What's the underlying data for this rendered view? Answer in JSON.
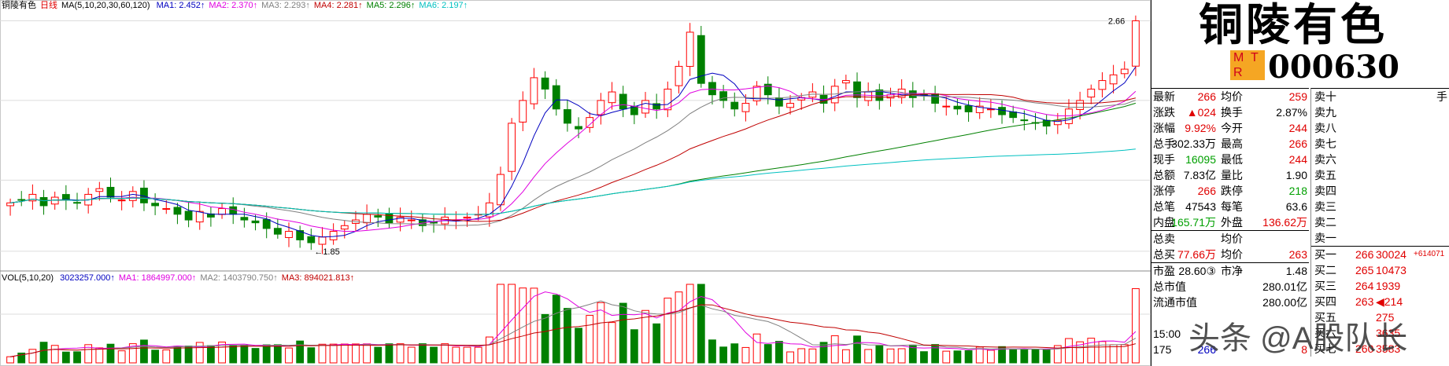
{
  "chart": {
    "stock_name": "铜陵有色",
    "period": "日线",
    "ma_spec": "MA(5,10,20,30,60,120)",
    "ma_labels": [
      {
        "text": "MA1: 2.452↑",
        "color": "#0000c0"
      },
      {
        "text": "MA2: 2.370↑",
        "color": "#e000e0"
      },
      {
        "text": "MA3: 2.293↑",
        "color": "#808080"
      },
      {
        "text": "MA4: 2.281↑",
        "color": "#c00000"
      },
      {
        "text": "MA5: 2.296↑",
        "color": "#008000"
      },
      {
        "text": "MA6: 2.197↑",
        "color": "#00c0c0"
      }
    ],
    "high_label": "2.66",
    "low_label": "←1.85",
    "vol_spec": "VOL(5,10,20)",
    "vol_labels": [
      {
        "text": "3023257.000↑",
        "color": "#0000c0"
      },
      {
        "text": "MA1: 1864997.000↑",
        "color": "#e000e0"
      },
      {
        "text": "MA2: 1403790.750↑",
        "color": "#808080"
      },
      {
        "text": "MA3: 894021.813↑",
        "color": "#c00000"
      }
    ]
  },
  "chart_data": {
    "type": "candlestick",
    "y_range": [
      1.8,
      2.7
    ],
    "closes": [
      2.02,
      2.03,
      2.05,
      2.01,
      2.04,
      2.03,
      2.02,
      2.05,
      2.07,
      2.04,
      2.03,
      2.06,
      2.02,
      2.01,
      2.0,
      1.98,
      1.96,
      1.99,
      1.97,
      2.0,
      1.98,
      1.96,
      1.95,
      1.93,
      1.91,
      1.92,
      1.89,
      1.88,
      1.9,
      1.92,
      1.94,
      1.96,
      1.98,
      1.97,
      1.95,
      1.97,
      1.96,
      1.94,
      1.95,
      1.97,
      1.96,
      1.97,
      1.98,
      2.02,
      2.12,
      2.3,
      2.38,
      2.46,
      2.42,
      2.35,
      2.3,
      2.28,
      2.32,
      2.38,
      2.41,
      2.35,
      2.33,
      2.38,
      2.35,
      2.42,
      2.5,
      2.62,
      2.44,
      2.4,
      2.38,
      2.35,
      2.37,
      2.43,
      2.4,
      2.36,
      2.37,
      2.39,
      2.41,
      2.37,
      2.43,
      2.45,
      2.39,
      2.41,
      2.38,
      2.4,
      2.42,
      2.39,
      2.4,
      2.37,
      2.36,
      2.35,
      2.34,
      2.36,
      2.35,
      2.33,
      2.32,
      2.31,
      2.3,
      2.29,
      2.31,
      2.35,
      2.38,
      2.42,
      2.45,
      2.47,
      2.49,
      2.66
    ],
    "volume_scale_max": 3200000
  },
  "panel": {
    "title": "铜陵有色",
    "mtr": [
      "M",
      "T",
      "R"
    ],
    "code": "000630",
    "quote_rows": [
      {
        "l1": "最新",
        "v1": "266",
        "c1": "red",
        "l2": "均价",
        "v2": "259",
        "c2": "red"
      },
      {
        "l1": "涨跌",
        "v1": "▲024",
        "c1": "red",
        "l2": "换手",
        "v2": "2.87%",
        "c2": "blk"
      },
      {
        "l1": "涨幅",
        "v1": "9.92%",
        "c1": "red",
        "l2": "今开",
        "v2": "244",
        "c2": "red"
      },
      {
        "l1": "总手",
        "v1": "302.33万",
        "c1": "blk",
        "l2": "最高",
        "v2": "266",
        "c2": "red"
      },
      {
        "l1": "现手",
        "v1": "16095",
        "c1": "grn",
        "l2": "最低",
        "v2": "244",
        "c2": "red"
      },
      {
        "l1": "总额",
        "v1": "7.83亿",
        "c1": "blk",
        "l2": "量比",
        "v2": "1.90",
        "c2": "blk"
      },
      {
        "l1": "涨停",
        "v1": "266",
        "c1": "red",
        "l2": "跌停",
        "v2": "218",
        "c2": "grn"
      },
      {
        "l1": "总笔",
        "v1": "47543",
        "c1": "blk",
        "l2": "每笔",
        "v2": "63.6",
        "c2": "blk"
      },
      {
        "l1": "内盘",
        "v1": "165.71万",
        "c1": "grn",
        "l2": "外盘",
        "v2": "136.62万",
        "c2": "red"
      },
      {
        "l1": "总卖",
        "v1": "",
        "c1": "blk",
        "l2": "均价",
        "v2": "",
        "c2": "blk"
      },
      {
        "l1": "总买",
        "v1": "77.66万",
        "c1": "red",
        "l2": "均价",
        "v2": "263",
        "c2": "red"
      },
      {
        "l1": "市盈",
        "v1": "28.60③",
        "c1": "blk",
        "l2": "市净",
        "v2": "1.48",
        "c2": "blk"
      },
      {
        "l1": "总市值",
        "v1": "",
        "c1": "blk",
        "l2": "",
        "v2": "280.01亿",
        "c2": "blk"
      },
      {
        "l1": "流通市值",
        "v1": "",
        "c1": "blk",
        "l2": "",
        "v2": "280.00亿",
        "c2": "blk"
      },
      {
        "l1": "",
        "v1": "",
        "c1": "blk",
        "l2": "",
        "v2": "",
        "c2": "blk"
      },
      {
        "l1": "15:00",
        "v1": "",
        "c1": "blk",
        "l2": "",
        "v2": "",
        "c2": "blk"
      },
      {
        "l1": "175",
        "v1": "266",
        "c1": "blu",
        "l2": "",
        "v2": "8",
        "c2": "red"
      }
    ],
    "book_header_unit": "手",
    "book_rows": [
      {
        "l": "卖十",
        "p": "",
        "q": ""
      },
      {
        "l": "卖九",
        "p": "",
        "q": ""
      },
      {
        "l": "卖八",
        "p": "",
        "q": ""
      },
      {
        "l": "卖七",
        "p": "",
        "q": ""
      },
      {
        "l": "卖六",
        "p": "",
        "q": ""
      },
      {
        "l": "卖五",
        "p": "",
        "q": ""
      },
      {
        "l": "卖四",
        "p": "",
        "q": ""
      },
      {
        "l": "卖三",
        "p": "",
        "q": ""
      },
      {
        "l": "卖二",
        "p": "",
        "q": ""
      },
      {
        "l": "卖一",
        "p": "",
        "q": ""
      },
      {
        "l": "买一",
        "p": "266",
        "q": "30024",
        "extra": "+614071"
      },
      {
        "l": "买二",
        "p": "265",
        "q": "10473",
        "extra": ""
      },
      {
        "l": "买三",
        "p": "264",
        "q": "1939",
        "extra": ""
      },
      {
        "l": "买四",
        "p": "263",
        "q": "◀214",
        "extra": ""
      },
      {
        "l": "买五",
        "p": "",
        "q": "275",
        "extra": ""
      },
      {
        "l": "买六",
        "p": "",
        "q": "3635",
        "extra": ""
      },
      {
        "l": "买七",
        "p": "260",
        "q": "3583",
        "extra": ""
      }
    ]
  },
  "watermark": "头条 @A股队长"
}
